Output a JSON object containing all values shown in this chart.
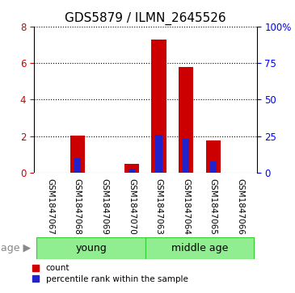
{
  "title": "GDS5879 / ILMN_2645526",
  "samples": [
    "GSM1847067",
    "GSM1847068",
    "GSM1847069",
    "GSM1847070",
    "GSM1847063",
    "GSM1847064",
    "GSM1847065",
    "GSM1847066"
  ],
  "count_values": [
    0.0,
    2.05,
    0.0,
    0.5,
    7.3,
    5.8,
    1.75,
    0.0
  ],
  "percentile_values": [
    0.0,
    10.0,
    0.0,
    3.0,
    26.0,
    23.0,
    8.0,
    0.0
  ],
  "groups": [
    {
      "label": "young",
      "start": 0,
      "end": 3
    },
    {
      "label": "middle age",
      "start": 4,
      "end": 7
    }
  ],
  "group_color": "#90EE90",
  "group_edge_color": "#33CC33",
  "bar_color_red": "#CC0000",
  "bar_color_blue": "#2222CC",
  "ylim_left": [
    0,
    8
  ],
  "ylim_right": [
    0,
    100
  ],
  "yticks_left": [
    0,
    2,
    4,
    6,
    8
  ],
  "yticks_right": [
    0,
    25,
    50,
    75,
    100
  ],
  "ytick_labels_right": [
    "0",
    "25",
    "50",
    "75",
    "100%"
  ],
  "bar_width": 0.55,
  "blue_bar_width": 0.25,
  "bg_color": "#ffffff",
  "tick_label_area_color": "#c8c8c8",
  "cell_edge_color": "#888888",
  "age_label": "age",
  "legend_count": "count",
  "legend_percentile": "percentile rank within the sample",
  "title_fontsize": 11,
  "tick_fontsize": 8.5,
  "label_fontsize": 7.5,
  "group_fontsize": 9
}
